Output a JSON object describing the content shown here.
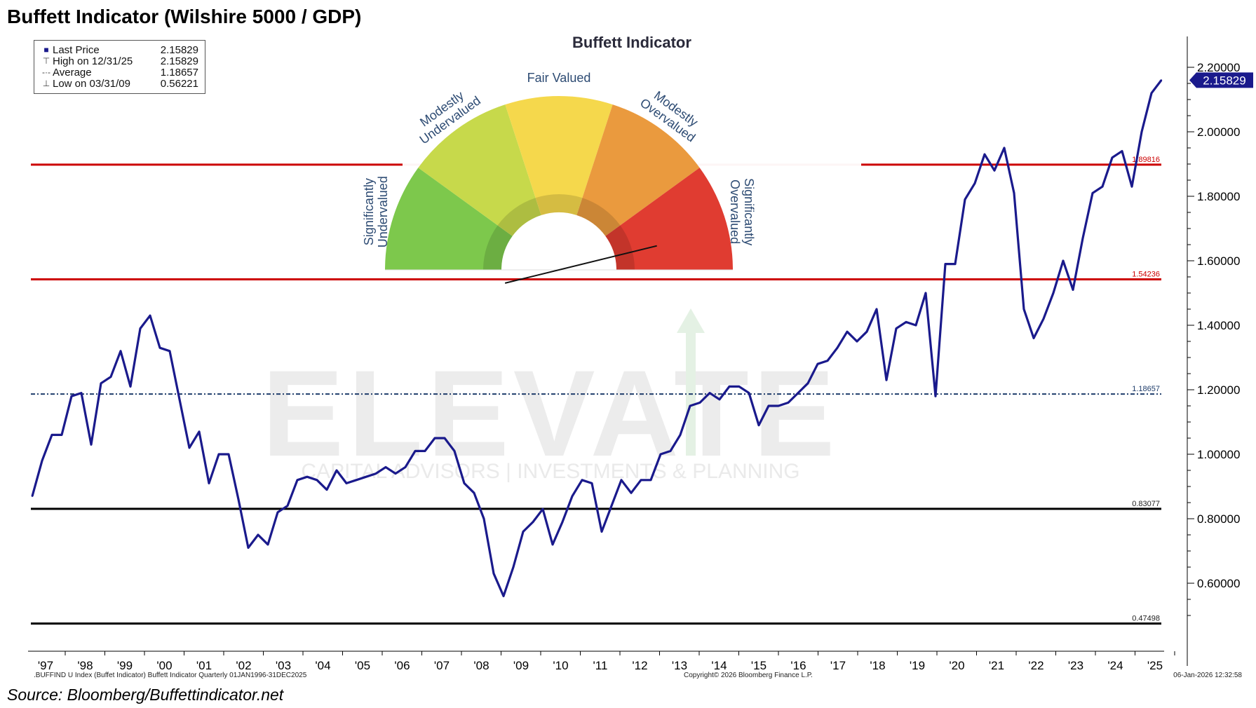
{
  "title": "Buffett Indicator (Wilshire 5000 / GDP)",
  "source": "Source: Bloomberg/Buffettindicator.net",
  "footer": {
    "left": ".BUFFIND U Index (Buffet Indicator) Buffett Indicator Quarterly 01JAN1996-31DEC2025",
    "center": "Copyright© 2026 Bloomberg Finance L.P.",
    "right": "06-Jan-2026 12:32:58"
  },
  "legend": {
    "rows": [
      {
        "label": "Last Price",
        "value": "2.15829",
        "icon": "square-icon"
      },
      {
        "label": "High on 12/31/25",
        "value": "2.15829",
        "icon": "high-marker-icon"
      },
      {
        "label": "Average",
        "value": "1.18657",
        "icon": "average-marker-icon"
      },
      {
        "label": "Low on 03/31/09",
        "value": "0.56221",
        "icon": "low-marker-icon"
      }
    ]
  },
  "watermark": {
    "main": "ELEVATE",
    "sub": "CAPITAL ADVISORS | INVESTMENTS & PLANNING"
  },
  "gauge": {
    "title": "Buffett Indicator",
    "segments": [
      {
        "label_lines": [
          "Significantly",
          "Undervalued"
        ],
        "color": "#7dc84c"
      },
      {
        "label_lines": [
          "Modestly",
          "Undervalued"
        ],
        "color": "#c7d94b"
      },
      {
        "label_lines": [
          "Fair Valued"
        ],
        "color": "#f5d84c"
      },
      {
        "label_lines": [
          "Modestly",
          "Overvalued"
        ],
        "color": "#ea9a3e"
      },
      {
        "label_lines": [
          "Significantly",
          "Overvalued"
        ],
        "color": "#e03c31"
      }
    ],
    "label_color": "#2d4b73"
  },
  "colors": {
    "series": "#1a1a8c",
    "red_line": "#cc0000",
    "black_line": "#000000",
    "average_line": "#1f3d6b",
    "last_price_badge": "#1a1a8c"
  },
  "chart_data": {
    "type": "line",
    "title": "Buffett Indicator (Wilshire 5000 / GDP)",
    "x_start": "1996-12-31",
    "ylim": [
      0.45,
      2.3
    ],
    "y_ticks": [
      "0.60000",
      "0.80000",
      "1.00000",
      "1.20000",
      "1.40000",
      "1.60000",
      "1.80000",
      "2.00000",
      "2.20000"
    ],
    "x_tick_labels": [
      "'97",
      "'98",
      "'99",
      "'00",
      "'01",
      "'02",
      "'03",
      "'04",
      "'05",
      "'06",
      "'07",
      "'08",
      "'09",
      "'10",
      "'11",
      "'12",
      "'13",
      "'14",
      "'15",
      "'16",
      "'17",
      "'18",
      "'19",
      "'20",
      "'21",
      "'22",
      "'23",
      "'24",
      "'25"
    ],
    "last_price_label": "2.15829",
    "reference_lines": [
      {
        "value": 1.89816,
        "label": "1.89816",
        "style": "red"
      },
      {
        "value": 1.54236,
        "label": "1.54236",
        "style": "red"
      },
      {
        "value": 1.18657,
        "label": "1.18657",
        "style": "average"
      },
      {
        "value": 0.83077,
        "label": "0.83077",
        "style": "black"
      },
      {
        "value": 0.47498,
        "label": "0.47498",
        "style": "black"
      }
    ],
    "series": [
      {
        "values": [
          0.87,
          0.98,
          1.06,
          1.06,
          1.18,
          1.19,
          1.03,
          1.22,
          1.24,
          1.32,
          1.21,
          1.39,
          1.43,
          1.33,
          1.32,
          1.17,
          1.02,
          1.07,
          0.91,
          1.0,
          1.0,
          0.86,
          0.71,
          0.75,
          0.72,
          0.82,
          0.84,
          0.92,
          0.93,
          0.92,
          0.89,
          0.95,
          0.91,
          0.92,
          0.93,
          0.94,
          0.96,
          0.94,
          0.96,
          1.01,
          1.01,
          1.05,
          1.05,
          1.01,
          0.91,
          0.88,
          0.8,
          0.63,
          0.56,
          0.65,
          0.76,
          0.79,
          0.83,
          0.72,
          0.79,
          0.87,
          0.92,
          0.91,
          0.76,
          0.84,
          0.92,
          0.88,
          0.92,
          0.92,
          1.0,
          1.01,
          1.06,
          1.15,
          1.16,
          1.19,
          1.17,
          1.21,
          1.21,
          1.19,
          1.09,
          1.15,
          1.15,
          1.16,
          1.19,
          1.22,
          1.28,
          1.29,
          1.33,
          1.38,
          1.35,
          1.38,
          1.45,
          1.23,
          1.39,
          1.41,
          1.4,
          1.5,
          1.18,
          1.59,
          1.59,
          1.79,
          1.84,
          1.93,
          1.88,
          1.95,
          1.81,
          1.45,
          1.36,
          1.42,
          1.5,
          1.6,
          1.51,
          1.67,
          1.81,
          1.83,
          1.92,
          1.94,
          1.83,
          2.0,
          2.12,
          2.16
        ]
      }
    ]
  }
}
